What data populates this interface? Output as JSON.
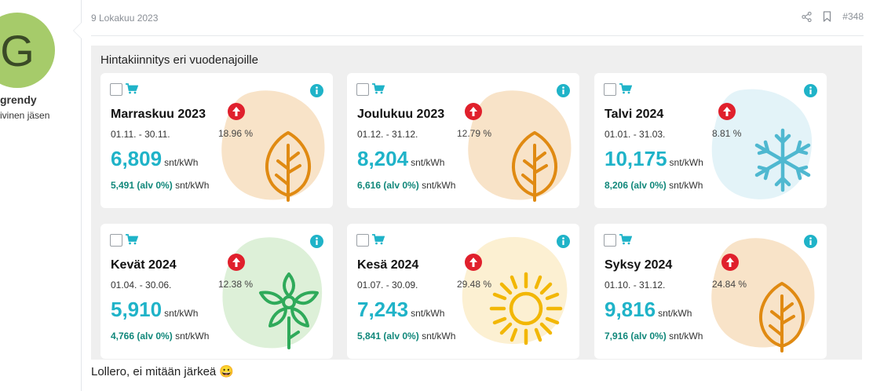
{
  "author": {
    "initial": "G",
    "name": "grendy",
    "title": "ivinen jäsen"
  },
  "post": {
    "date": "9 Lokakuu 2023",
    "number": "#348",
    "icons": [
      "share-icon",
      "bookmark-icon"
    ],
    "text": "Lollero, ei mitään järkeä",
    "emoji": "😀"
  },
  "panel": {
    "title": "Hintakiinnitys eri vuodenajoille",
    "accent": "#1fb3c8",
    "cards": [
      {
        "name": "Marraskuu 2023",
        "range": "01.11. - 30.11.",
        "pct": "18.96 %",
        "price": "6,809",
        "unit": "snt/kWh",
        "sub_value": "5,491 (alv 0%)",
        "sub_unit": "snt/kWh",
        "icon": "leaf-icon"
      },
      {
        "name": "Joulukuu 2023",
        "range": "01.12. - 31.12.",
        "pct": "12.79 %",
        "price": "8,204",
        "unit": "snt/kWh",
        "sub_value": "6,616 (alv 0%)",
        "sub_unit": "snt/kWh",
        "icon": "leaf-icon"
      },
      {
        "name": "Talvi 2024",
        "range": "01.01. - 31.03.",
        "pct": "8.81 %",
        "price": "10,175",
        "unit": "snt/kWh",
        "sub_value": "8,206 (alv 0%)",
        "sub_unit": "snt/kWh",
        "icon": "snowflake-icon"
      },
      {
        "name": "Kevät 2024",
        "range": "01.04. - 30.06.",
        "pct": "12.38 %",
        "price": "5,910",
        "unit": "snt/kWh",
        "sub_value": "4,766 (alv 0%)",
        "sub_unit": "snt/kWh",
        "icon": "flower-icon"
      },
      {
        "name": "Kesä 2024",
        "range": "01.07. - 30.09.",
        "pct": "29.48 %",
        "price": "7,243",
        "unit": "snt/kWh",
        "sub_value": "5,841 (alv 0%)",
        "sub_unit": "snt/kWh",
        "icon": "sun-icon"
      },
      {
        "name": "Syksy 2024",
        "range": "01.10. - 31.12.",
        "pct": "24.84 %",
        "price": "9,816",
        "unit": "snt/kWh",
        "sub_value": "7,916 (alv 0%)",
        "sub_unit": "snt/kWh",
        "icon": "leaf-icon"
      }
    ]
  }
}
